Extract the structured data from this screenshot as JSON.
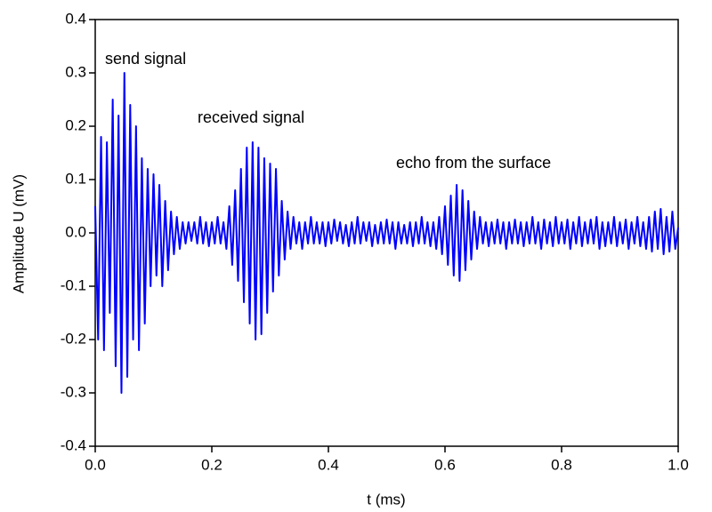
{
  "chart_data": {
    "type": "line",
    "xlabel": "t (ms)",
    "ylabel": "Amplitude U (mV)",
    "annotations": [
      "send signal",
      "received signal",
      "echo from the surface"
    ],
    "color": "#0000ff",
    "xlim": [
      0,
      1
    ],
    "ylim": [
      -0.4,
      0.4
    ],
    "xticks": [
      {
        "value": 0,
        "label": "0.0"
      },
      0.2,
      0.4,
      0.6,
      0.8,
      {
        "value": 1,
        "label": "1.0"
      }
    ],
    "yticks": [
      -0.4,
      -0.3,
      -0.2,
      -0.1,
      {
        "value": 0,
        "label": "0.0"
      },
      0.1,
      0.2,
      0.3,
      0.4
    ],
    "x": [
      0,
      0.005,
      0.01,
      0.015,
      0.02,
      0.025,
      0.03,
      0.035,
      0.04,
      0.045,
      0.05,
      0.055,
      0.06,
      0.065,
      0.07,
      0.075,
      0.08,
      0.085,
      0.09,
      0.095,
      0.1,
      0.105,
      0.11,
      0.115,
      0.12,
      0.125,
      0.13,
      0.135,
      0.14,
      0.145,
      0.15,
      0.155,
      0.16,
      0.165,
      0.17,
      0.175,
      0.18,
      0.185,
      0.19,
      0.195,
      0.2,
      0.205,
      0.21,
      0.215,
      0.22,
      0.225,
      0.23,
      0.235,
      0.24,
      0.245,
      0.25,
      0.255,
      0.26,
      0.265,
      0.27,
      0.275,
      0.28,
      0.285,
      0.29,
      0.295,
      0.3,
      0.305,
      0.31,
      0.315,
      0.32,
      0.325,
      0.33,
      0.335,
      0.34,
      0.345,
      0.35,
      0.355,
      0.36,
      0.365,
      0.37,
      0.375,
      0.38,
      0.385,
      0.39,
      0.395,
      0.4,
      0.405,
      0.41,
      0.415,
      0.42,
      0.425,
      0.43,
      0.435,
      0.44,
      0.445,
      0.45,
      0.455,
      0.46,
      0.465,
      0.47,
      0.475,
      0.48,
      0.485,
      0.49,
      0.495,
      0.5,
      0.505,
      0.51,
      0.515,
      0.52,
      0.525,
      0.53,
      0.535,
      0.54,
      0.545,
      0.55,
      0.555,
      0.56,
      0.565,
      0.57,
      0.575,
      0.58,
      0.585,
      0.59,
      0.595,
      0.6,
      0.605,
      0.61,
      0.615,
      0.62,
      0.625,
      0.63,
      0.635,
      0.64,
      0.645,
      0.65,
      0.655,
      0.66,
      0.665,
      0.67,
      0.675,
      0.68,
      0.685,
      0.69,
      0.695,
      0.7,
      0.705,
      0.71,
      0.715,
      0.72,
      0.725,
      0.73,
      0.735,
      0.74,
      0.745,
      0.75,
      0.755,
      0.76,
      0.765,
      0.77,
      0.775,
      0.78,
      0.785,
      0.79,
      0.795,
      0.8,
      0.805,
      0.81,
      0.815,
      0.82,
      0.825,
      0.83,
      0.835,
      0.84,
      0.845,
      0.85,
      0.855,
      0.86,
      0.865,
      0.87,
      0.875,
      0.88,
      0.885,
      0.89,
      0.895,
      0.9,
      0.905,
      0.91,
      0.915,
      0.92,
      0.925,
      0.93,
      0.935,
      0.94,
      0.945,
      0.95,
      0.955,
      0.96,
      0.965,
      0.97,
      0.975,
      0.98,
      0.985,
      0.99,
      0.995,
      1
    ],
    "values": [
      0.05,
      -0.2,
      0.18,
      -0.22,
      0.17,
      -0.15,
      0.25,
      -0.25,
      0.22,
      -0.3,
      0.3,
      -0.27,
      0.24,
      -0.2,
      0.2,
      -0.22,
      0.14,
      -0.17,
      0.12,
      -0.1,
      0.11,
      -0.08,
      0.09,
      -0.1,
      0.06,
      -0.07,
      0.04,
      -0.04,
      0.03,
      -0.03,
      0.02,
      -0.02,
      0.02,
      -0.015,
      0.02,
      -0.02,
      0.03,
      -0.02,
      0.02,
      -0.025,
      0.02,
      -0.02,
      0.03,
      -0.02,
      0.02,
      -0.03,
      0.05,
      -0.06,
      0.08,
      -0.09,
      0.12,
      -0.13,
      0.16,
      -0.17,
      0.17,
      -0.2,
      0.16,
      -0.19,
      0.14,
      -0.15,
      0.13,
      -0.11,
      0.12,
      -0.08,
      0.06,
      -0.05,
      0.04,
      -0.03,
      0.03,
      -0.02,
      0.02,
      -0.03,
      0.02,
      -0.02,
      0.03,
      -0.02,
      0.02,
      -0.02,
      0.02,
      -0.025,
      0.02,
      -0.02,
      0.025,
      -0.015,
      0.02,
      -0.02,
      0.015,
      -0.025,
      0.02,
      -0.02,
      0.03,
      -0.02,
      0.02,
      -0.015,
      0.02,
      -0.025,
      0.015,
      -0.02,
      0.02,
      -0.02,
      0.025,
      -0.02,
      0.02,
      -0.03,
      0.02,
      -0.02,
      0.015,
      -0.02,
      0.02,
      -0.025,
      0.02,
      -0.02,
      0.03,
      -0.02,
      0.02,
      -0.025,
      0.02,
      -0.03,
      0.03,
      -0.04,
      0.05,
      -0.06,
      0.07,
      -0.08,
      0.09,
      -0.09,
      0.08,
      -0.07,
      0.06,
      -0.05,
      0.04,
      -0.03,
      0.03,
      -0.02,
      0.02,
      -0.025,
      0.02,
      -0.02,
      0.025,
      -0.02,
      0.02,
      -0.03,
      0.02,
      -0.02,
      0.025,
      -0.02,
      0.02,
      -0.025,
      0.02,
      -0.02,
      0.03,
      -0.02,
      0.02,
      -0.03,
      0.025,
      -0.02,
      0.02,
      -0.025,
      0.03,
      -0.02,
      0.02,
      -0.02,
      0.025,
      -0.03,
      0.02,
      -0.02,
      0.03,
      -0.025,
      0.02,
      -0.02,
      0.025,
      -0.02,
      0.03,
      -0.03,
      0.02,
      -0.025,
      0.02,
      -0.02,
      0.03,
      -0.025,
      0.02,
      -0.02,
      0.025,
      -0.03,
      0.02,
      -0.02,
      0.03,
      -0.025,
      0.02,
      -0.03,
      0.03,
      -0.035,
      0.04,
      -0.03,
      0.045,
      -0.04,
      0.03,
      -0.035,
      0.04,
      -0.03,
      0.01
    ]
  }
}
